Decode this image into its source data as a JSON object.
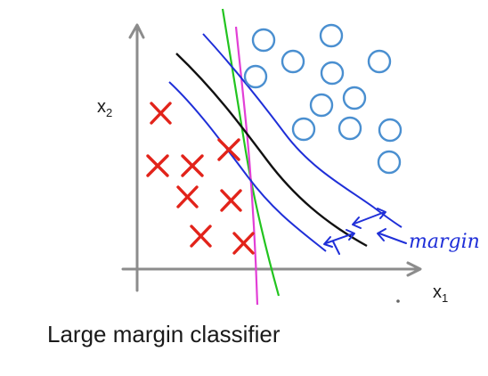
{
  "caption": "Large margin classifier",
  "axes": {
    "x_label_base": "x",
    "x_label_sub": "1",
    "y_label_base": "x",
    "y_label_sub": "2"
  },
  "annotation": {
    "margin_label": "margin"
  },
  "legend_markers": {
    "positive": "circle",
    "negative": "cross"
  },
  "colors": {
    "circle": "#4a8fd0",
    "cross": "#e2231a",
    "decision_boundary": "#111111",
    "margin_lines": "#1f2fd8",
    "green_boundary": "#22c41f",
    "magenta_boundary": "#e23fd6",
    "axis": "#8c8c8c"
  }
}
